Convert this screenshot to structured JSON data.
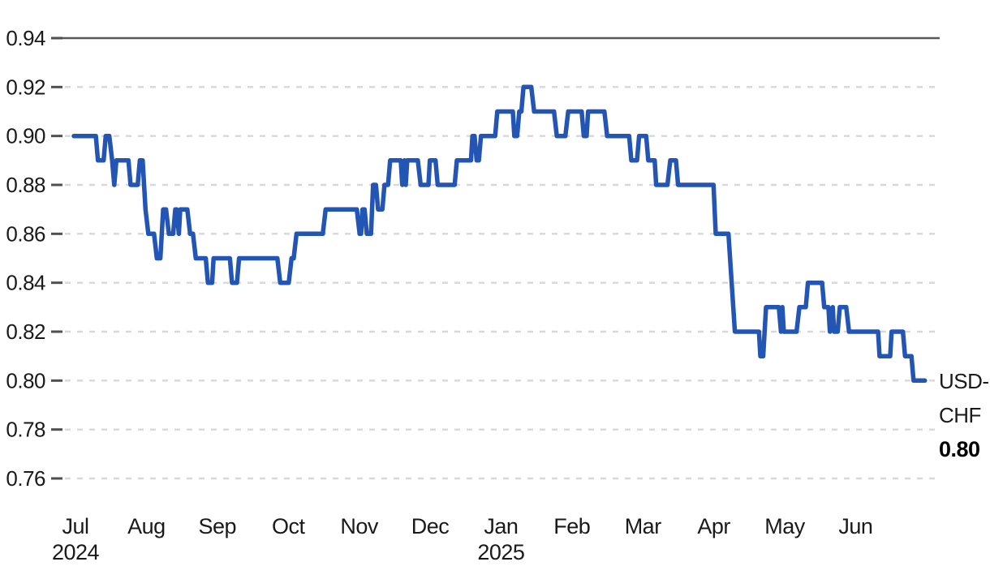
{
  "chart_data": {
    "type": "line",
    "x_unit": "months since start (0 = Jul 2024 ... 11 = Jun 2025)",
    "xlim_months": [
      0,
      12
    ],
    "ylim": [
      0.76,
      0.94
    ],
    "grid": {
      "horizontal_dashed": true,
      "top_line_solid": true,
      "vertical": false
    },
    "legend_position": "right-edge end label",
    "y_tick_labels": [
      "0.94",
      "0.92",
      "0.90",
      "0.88",
      "0.86",
      "0.84",
      "0.82",
      "0.80",
      "0.78",
      "0.76"
    ],
    "x_tick_labels": [
      "Jul",
      "Aug",
      "Sep",
      "Oct",
      "Nov",
      "Dec",
      "Jan",
      "Feb",
      "Mar",
      "Apr",
      "May",
      "Jun"
    ],
    "x_year_rows": [
      {
        "index": 0,
        "year": "2024"
      },
      {
        "index": 6,
        "year": "2025"
      }
    ],
    "end_label": {
      "line1": "USD-",
      "line2": "CHF",
      "value": "0.80"
    },
    "series": [
      {
        "name": "USD-CHF",
        "color": "#2355b4",
        "last_value": 0.8,
        "points": [
          [
            0.0,
            0.9
          ],
          [
            0.31,
            0.9
          ],
          [
            0.34,
            0.89
          ],
          [
            0.42,
            0.89
          ],
          [
            0.45,
            0.9
          ],
          [
            0.5,
            0.9
          ],
          [
            0.54,
            0.89
          ],
          [
            0.57,
            0.88
          ],
          [
            0.6,
            0.89
          ],
          [
            0.77,
            0.89
          ],
          [
            0.8,
            0.88
          ],
          [
            0.9,
            0.88
          ],
          [
            0.93,
            0.89
          ],
          [
            0.97,
            0.89
          ],
          [
            1.01,
            0.87
          ],
          [
            1.05,
            0.86
          ],
          [
            1.13,
            0.86
          ],
          [
            1.17,
            0.85
          ],
          [
            1.22,
            0.85
          ],
          [
            1.26,
            0.87
          ],
          [
            1.3,
            0.87
          ],
          [
            1.34,
            0.86
          ],
          [
            1.4,
            0.86
          ],
          [
            1.43,
            0.87
          ],
          [
            1.45,
            0.87
          ],
          [
            1.48,
            0.86
          ],
          [
            1.5,
            0.87
          ],
          [
            1.6,
            0.87
          ],
          [
            1.64,
            0.86
          ],
          [
            1.68,
            0.86
          ],
          [
            1.72,
            0.85
          ],
          [
            1.86,
            0.85
          ],
          [
            1.89,
            0.84
          ],
          [
            1.95,
            0.84
          ],
          [
            1.97,
            0.85
          ],
          [
            2.2,
            0.85
          ],
          [
            2.23,
            0.84
          ],
          [
            2.3,
            0.84
          ],
          [
            2.33,
            0.85
          ],
          [
            2.87,
            0.85
          ],
          [
            2.91,
            0.84
          ],
          [
            3.03,
            0.84
          ],
          [
            3.07,
            0.85
          ],
          [
            3.1,
            0.85
          ],
          [
            3.14,
            0.86
          ],
          [
            3.51,
            0.86
          ],
          [
            3.55,
            0.87
          ],
          [
            3.99,
            0.87
          ],
          [
            4.03,
            0.86
          ],
          [
            4.05,
            0.86
          ],
          [
            4.07,
            0.87
          ],
          [
            4.1,
            0.87
          ],
          [
            4.13,
            0.86
          ],
          [
            4.19,
            0.86
          ],
          [
            4.22,
            0.88
          ],
          [
            4.26,
            0.88
          ],
          [
            4.29,
            0.87
          ],
          [
            4.35,
            0.87
          ],
          [
            4.38,
            0.88
          ],
          [
            4.43,
            0.88
          ],
          [
            4.46,
            0.89
          ],
          [
            4.61,
            0.89
          ],
          [
            4.63,
            0.88
          ],
          [
            4.66,
            0.89
          ],
          [
            4.68,
            0.88
          ],
          [
            4.7,
            0.89
          ],
          [
            4.85,
            0.89
          ],
          [
            4.89,
            0.88
          ],
          [
            5.0,
            0.88
          ],
          [
            5.02,
            0.89
          ],
          [
            5.1,
            0.89
          ],
          [
            5.13,
            0.88
          ],
          [
            5.37,
            0.88
          ],
          [
            5.4,
            0.89
          ],
          [
            5.6,
            0.89
          ],
          [
            5.62,
            0.9
          ],
          [
            5.65,
            0.9
          ],
          [
            5.68,
            0.89
          ],
          [
            5.71,
            0.89
          ],
          [
            5.74,
            0.9
          ],
          [
            5.94,
            0.9
          ],
          [
            5.97,
            0.91
          ],
          [
            6.19,
            0.91
          ],
          [
            6.21,
            0.9
          ],
          [
            6.25,
            0.9
          ],
          [
            6.28,
            0.91
          ],
          [
            6.31,
            0.91
          ],
          [
            6.34,
            0.92
          ],
          [
            6.45,
            0.92
          ],
          [
            6.49,
            0.91
          ],
          [
            6.77,
            0.91
          ],
          [
            6.81,
            0.9
          ],
          [
            6.93,
            0.9
          ],
          [
            6.97,
            0.91
          ],
          [
            7.16,
            0.91
          ],
          [
            7.19,
            0.9
          ],
          [
            7.23,
            0.9
          ],
          [
            7.25,
            0.91
          ],
          [
            7.48,
            0.91
          ],
          [
            7.52,
            0.9
          ],
          [
            7.83,
            0.9
          ],
          [
            7.86,
            0.89
          ],
          [
            7.94,
            0.89
          ],
          [
            7.97,
            0.9
          ],
          [
            8.07,
            0.9
          ],
          [
            8.1,
            0.89
          ],
          [
            8.19,
            0.89
          ],
          [
            8.21,
            0.88
          ],
          [
            8.37,
            0.88
          ],
          [
            8.41,
            0.89
          ],
          [
            8.49,
            0.89
          ],
          [
            8.52,
            0.88
          ],
          [
            9.02,
            0.88
          ],
          [
            9.05,
            0.86
          ],
          [
            9.23,
            0.86
          ],
          [
            9.32,
            0.82
          ],
          [
            9.66,
            0.82
          ],
          [
            9.68,
            0.81
          ],
          [
            9.72,
            0.81
          ],
          [
            9.76,
            0.83
          ],
          [
            9.94,
            0.83
          ],
          [
            9.97,
            0.82
          ],
          [
            9.99,
            0.83
          ],
          [
            10.01,
            0.82
          ],
          [
            10.03,
            0.82
          ],
          [
            10.19,
            0.82
          ],
          [
            10.23,
            0.83
          ],
          [
            10.32,
            0.83
          ],
          [
            10.35,
            0.84
          ],
          [
            10.55,
            0.84
          ],
          [
            10.58,
            0.83
          ],
          [
            10.64,
            0.83
          ],
          [
            10.66,
            0.82
          ],
          [
            10.7,
            0.83
          ],
          [
            10.72,
            0.82
          ],
          [
            10.77,
            0.82
          ],
          [
            10.8,
            0.83
          ],
          [
            10.89,
            0.83
          ],
          [
            10.93,
            0.82
          ],
          [
            11.34,
            0.82
          ],
          [
            11.36,
            0.81
          ],
          [
            11.51,
            0.81
          ],
          [
            11.53,
            0.82
          ],
          [
            11.69,
            0.82
          ],
          [
            11.72,
            0.81
          ],
          [
            11.81,
            0.81
          ],
          [
            11.84,
            0.8
          ],
          [
            12.0,
            0.8
          ]
        ]
      }
    ],
    "colors": {
      "line": "#2355b4",
      "solid_grid_line": "#595959",
      "axis_tick": "#4f4f4f",
      "dashed_grid": "#d8d8d8",
      "label_text": "#1a1a1a",
      "value_text": "#000000",
      "background": "#ffffff"
    }
  }
}
